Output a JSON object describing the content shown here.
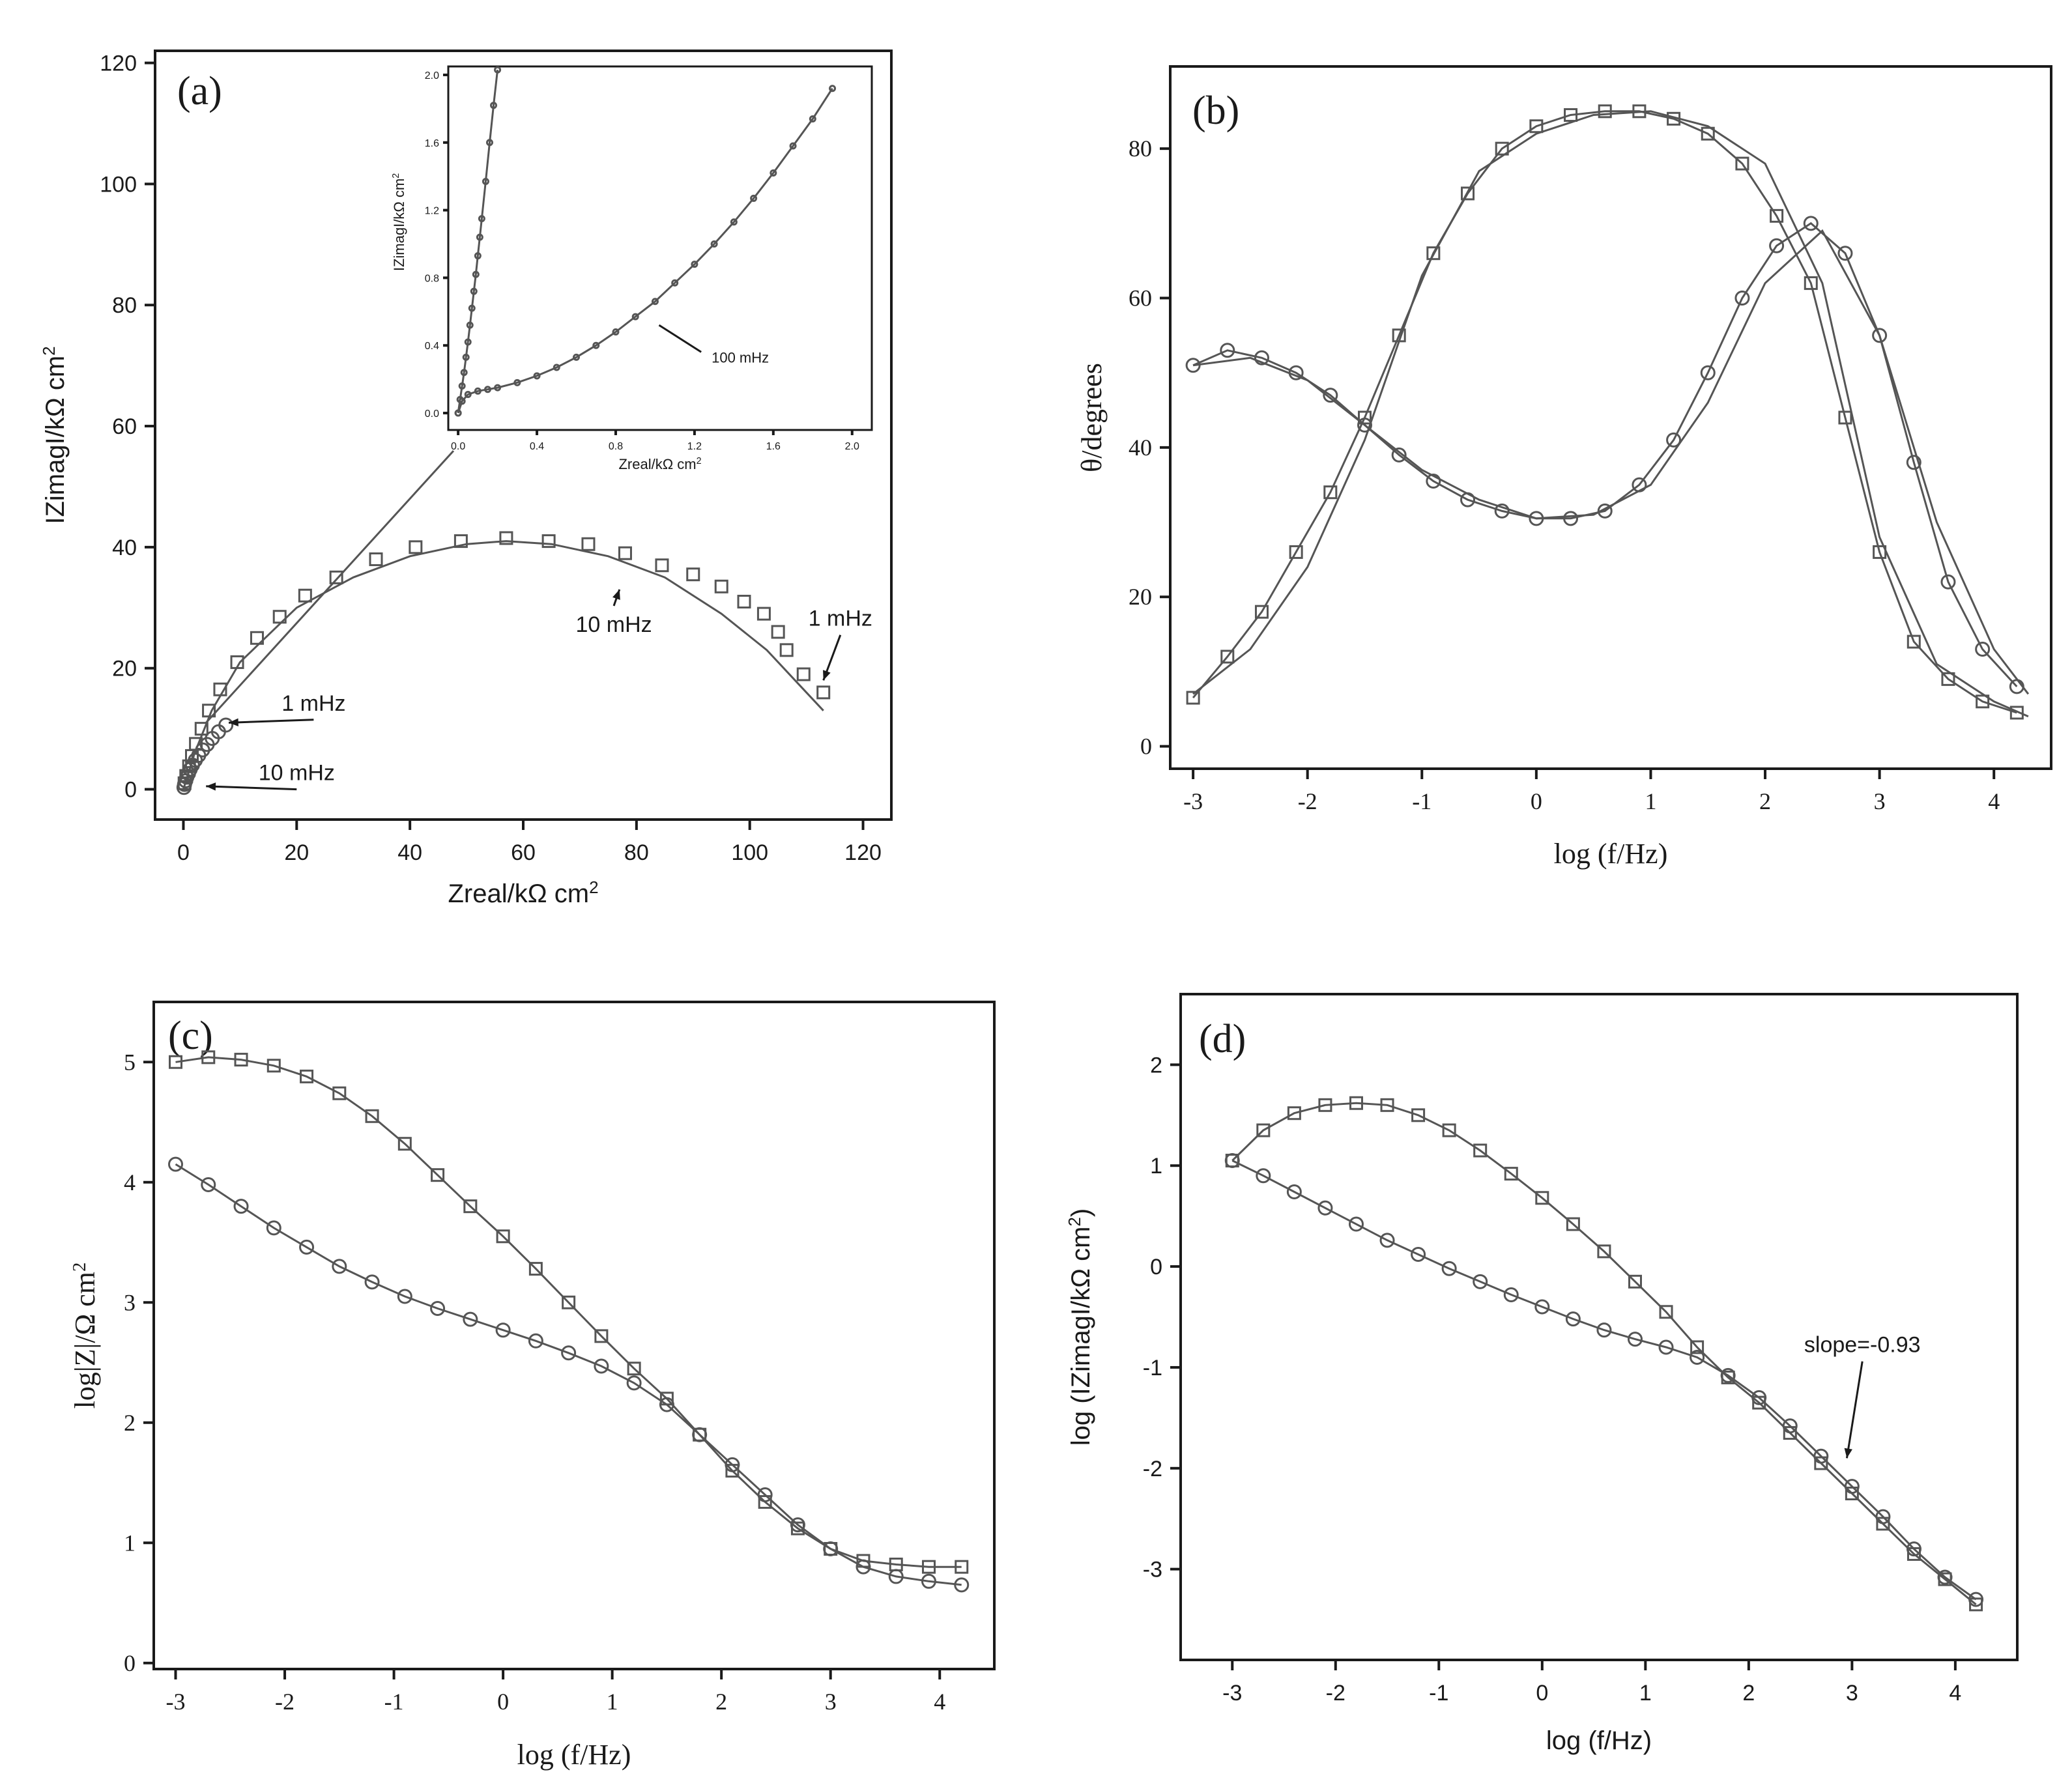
{
  "chart_data": [
    {
      "panel": "a",
      "type": "scatter",
      "panel_label": "(a)",
      "xlabel": "Zreal/kΩ cm",
      "xlabel_sup": "2",
      "ylabel": "IZimagI/kΩ cm",
      "ylabel_sup": "2",
      "xlim": [
        -5,
        125
      ],
      "ylim": [
        -5,
        122
      ],
      "xticks": [
        0,
        20,
        40,
        60,
        80,
        100,
        120
      ],
      "yticks": [
        0,
        20,
        40,
        60,
        80,
        100,
        120
      ],
      "series": [
        {
          "name": "squares",
          "marker": "square",
          "x": [
            0.2,
            0.5,
            1,
            1.5,
            2.2,
            3.2,
            4.5,
            6.5,
            9.5,
            13,
            17,
            21.5,
            27,
            34,
            41,
            49,
            57,
            64.5,
            71.5,
            78,
            84.5,
            90,
            95,
            99,
            102.5,
            105,
            106.5,
            109.5,
            113
          ],
          "y": [
            1,
            2.2,
            3.8,
            5.5,
            7.5,
            10,
            13,
            16.5,
            21,
            25,
            28.5,
            32,
            35,
            38,
            40,
            41,
            41.5,
            41,
            40.5,
            39,
            37,
            35.5,
            33.5,
            31,
            29,
            26,
            23,
            19,
            16
          ]
        },
        {
          "name": "circles",
          "marker": "circle",
          "x": [
            0.1,
            0.2,
            0.4,
            0.6,
            0.9,
            1.2,
            1.6,
            2.1,
            2.7,
            3.4,
            4.2,
            5.1,
            6.2,
            7.5
          ],
          "y": [
            0.3,
            0.8,
            1.4,
            2,
            2.6,
            3.3,
            4,
            4.8,
            5.6,
            6.5,
            7.4,
            8.4,
            9.5,
            10.6
          ]
        },
        {
          "name": "fit",
          "marker": "line",
          "x": [
            0,
            2,
            5,
            10,
            20,
            30,
            40,
            50,
            57,
            65,
            75,
            85,
            95,
            103,
            108,
            113
          ],
          "y": [
            0,
            6,
            13,
            21,
            30,
            35,
            38.5,
            40.5,
            41,
            40.5,
            38.5,
            35,
            29,
            23,
            18,
            13
          ]
        }
      ],
      "annotations": [
        {
          "text": "1 mHz",
          "x": 23,
          "y": 13,
          "arrow_to": [
            8,
            11
          ]
        },
        {
          "text": "10 mHz",
          "x": 20,
          "y": 1.5,
          "arrow_to": [
            4,
            0.5
          ]
        },
        {
          "text": "10 mHz",
          "x": 76,
          "y": 26,
          "arrow_to": [
            77,
            33
          ]
        },
        {
          "text": "1 mHz",
          "x": 116,
          "y": 27,
          "arrow_to": [
            113,
            18
          ]
        }
      ],
      "inset": {
        "xlabel": "Zreal/kΩ cm",
        "xlabel_sup": "2",
        "ylabel": "IZimagI/kΩ cm",
        "ylabel_sup": "2",
        "xlim": [
          -0.05,
          2.1
        ],
        "ylim": [
          -0.1,
          2.05
        ],
        "xticks": [
          "0.0",
          "0.4",
          "0.8",
          "1.2",
          "1.6",
          "2.0"
        ],
        "yticks": [
          "0.0",
          "0.4",
          "0.8",
          "1.2",
          "1.6",
          "2.0"
        ],
        "steep_series": {
          "x": [
            0.0,
            0.01,
            0.02,
            0.03,
            0.04,
            0.05,
            0.06,
            0.07,
            0.08,
            0.09,
            0.1,
            0.11,
            0.12,
            0.14,
            0.16,
            0.18,
            0.2
          ],
          "y": [
            0.0,
            0.08,
            0.16,
            0.24,
            0.33,
            0.42,
            0.52,
            0.62,
            0.72,
            0.82,
            0.93,
            1.04,
            1.15,
            1.37,
            1.6,
            1.82,
            2.03
          ]
        },
        "shallow_series": {
          "x": [
            0.0,
            0.02,
            0.05,
            0.1,
            0.15,
            0.2,
            0.3,
            0.4,
            0.5,
            0.6,
            0.7,
            0.8,
            0.9,
            1.0,
            1.1,
            1.2,
            1.3,
            1.4,
            1.5,
            1.6,
            1.7,
            1.8,
            1.9
          ],
          "y": [
            0.0,
            0.07,
            0.11,
            0.13,
            0.14,
            0.15,
            0.18,
            0.22,
            0.27,
            0.33,
            0.4,
            0.48,
            0.57,
            0.66,
            0.77,
            0.88,
            1.0,
            1.13,
            1.27,
            1.42,
            1.58,
            1.74,
            1.92
          ]
        },
        "annotation": {
          "text": "100 mHz",
          "x": 1.3,
          "y": 0.33,
          "arrow_to": [
            1.02,
            0.52
          ]
        }
      }
    },
    {
      "panel": "b",
      "type": "scatter",
      "panel_label": "(b)",
      "xlabel": "log (f/Hz)",
      "ylabel": "θ/degrees",
      "xlim": [
        -3.2,
        4.5
      ],
      "ylim": [
        -3,
        91
      ],
      "xticks": [
        -3,
        -2,
        -1,
        0,
        1,
        2,
        3,
        4
      ],
      "yticks": [
        0,
        20,
        40,
        60,
        80
      ],
      "series": [
        {
          "name": "squares",
          "marker": "square",
          "x": [
            -3.0,
            -2.7,
            -2.4,
            -2.1,
            -1.8,
            -1.5,
            -1.2,
            -0.9,
            -0.6,
            -0.3,
            0.0,
            0.3,
            0.6,
            0.9,
            1.2,
            1.5,
            1.8,
            2.1,
            2.4,
            2.7,
            3.0,
            3.3,
            3.6,
            3.9,
            4.2
          ],
          "y": [
            6.5,
            12,
            18,
            26,
            34,
            44,
            55,
            66,
            74,
            80,
            83,
            84.5,
            85,
            85,
            84,
            82,
            78,
            71,
            62,
            44,
            26,
            14,
            9,
            6,
            4.5
          ]
        },
        {
          "name": "circles",
          "marker": "circle",
          "x": [
            -3.0,
            -2.7,
            -2.4,
            -2.1,
            -1.8,
            -1.5,
            -1.2,
            -0.9,
            -0.6,
            -0.3,
            0.0,
            0.3,
            0.6,
            0.9,
            1.2,
            1.5,
            1.8,
            2.1,
            2.4,
            2.7,
            3.0,
            3.3,
            3.6,
            3.9,
            4.2
          ],
          "y": [
            51,
            53,
            52,
            50,
            47,
            43,
            39,
            35.5,
            33,
            31.5,
            30.5,
            30.5,
            31.5,
            35,
            41,
            50,
            60,
            67,
            70,
            66,
            55,
            38,
            22,
            13,
            8
          ]
        },
        {
          "name": "fit_squares",
          "marker": "line",
          "x": [
            -3.0,
            -2.5,
            -2.0,
            -1.5,
            -1.0,
            -0.5,
            0.0,
            0.5,
            1.0,
            1.5,
            2.0,
            2.5,
            3.0,
            3.5,
            4.0,
            4.3
          ],
          "y": [
            7,
            13,
            24,
            41,
            63,
            77,
            82,
            84.5,
            85,
            83,
            78,
            62,
            28,
            11,
            6,
            4
          ]
        },
        {
          "name": "fit_circles",
          "marker": "line",
          "x": [
            -3.0,
            -2.5,
            -2.0,
            -1.5,
            -1.0,
            -0.5,
            0.0,
            0.5,
            1.0,
            1.5,
            2.0,
            2.5,
            3.0,
            3.5,
            4.0,
            4.3
          ],
          "y": [
            51,
            52,
            49,
            43,
            37,
            33,
            30.5,
            31,
            35,
            46,
            62,
            69,
            55,
            30,
            13,
            7
          ]
        }
      ]
    },
    {
      "panel": "c",
      "type": "scatter",
      "panel_label": "(c)",
      "xlabel": "log (f/Hz)",
      "ylabel": "log|Z|/Ω cm",
      "ylabel_sup": "2",
      "xlim": [
        -3.2,
        4.5
      ],
      "ylim": [
        -0.05,
        5.5
      ],
      "xticks": [
        -3,
        -2,
        -1,
        0,
        1,
        2,
        3,
        4
      ],
      "yticks": [
        0,
        1,
        2,
        3,
        4,
        5
      ],
      "series": [
        {
          "name": "squares",
          "marker": "square",
          "x": [
            -3.0,
            -2.7,
            -2.4,
            -2.1,
            -1.8,
            -1.5,
            -1.2,
            -0.9,
            -0.6,
            -0.3,
            0.0,
            0.3,
            0.6,
            0.9,
            1.2,
            1.5,
            1.8,
            2.1,
            2.4,
            2.7,
            3.0,
            3.3,
            3.6,
            3.9,
            4.2
          ],
          "y": [
            5.0,
            5.04,
            5.02,
            4.97,
            4.88,
            4.74,
            4.55,
            4.32,
            4.06,
            3.8,
            3.55,
            3.28,
            3.0,
            2.72,
            2.45,
            2.2,
            1.9,
            1.6,
            1.34,
            1.12,
            0.95,
            0.85,
            0.82,
            0.8,
            0.8
          ]
        },
        {
          "name": "circles",
          "marker": "circle",
          "x": [
            -3.0,
            -2.7,
            -2.4,
            -2.1,
            -1.8,
            -1.5,
            -1.2,
            -0.9,
            -0.6,
            -0.3,
            0.0,
            0.3,
            0.6,
            0.9,
            1.2,
            1.5,
            1.8,
            2.1,
            2.4,
            2.7,
            3.0,
            3.3,
            3.6,
            3.9,
            4.2
          ],
          "y": [
            4.15,
            3.98,
            3.8,
            3.62,
            3.46,
            3.3,
            3.17,
            3.05,
            2.95,
            2.86,
            2.77,
            2.68,
            2.58,
            2.47,
            2.33,
            2.15,
            1.9,
            1.65,
            1.4,
            1.15,
            0.95,
            0.8,
            0.72,
            0.68,
            0.65
          ]
        }
      ]
    },
    {
      "panel": "d",
      "type": "scatter",
      "panel_label": "(d)",
      "xlabel": "log (f/Hz)",
      "ylabel": "log (IZimagI/kΩ cm",
      "ylabel_sup": "2",
      "ylabel_close": ")",
      "xlim": [
        -3.5,
        4.6
      ],
      "ylim": [
        -3.9,
        2.7
      ],
      "xticks": [
        -3,
        -2,
        -1,
        0,
        1,
        2,
        3,
        4
      ],
      "yticks": [
        2,
        1,
        0,
        -1,
        -2,
        -3
      ],
      "series": [
        {
          "name": "squares",
          "marker": "square",
          "x": [
            -3.0,
            -2.7,
            -2.4,
            -2.1,
            -1.8,
            -1.5,
            -1.2,
            -0.9,
            -0.6,
            -0.3,
            0.0,
            0.3,
            0.6,
            0.9,
            1.2,
            1.5,
            1.8,
            2.1,
            2.4,
            2.7,
            3.0,
            3.3,
            3.6,
            3.9,
            4.2
          ],
          "y": [
            1.05,
            1.35,
            1.52,
            1.6,
            1.62,
            1.6,
            1.5,
            1.35,
            1.15,
            0.92,
            0.68,
            0.42,
            0.15,
            -0.15,
            -0.45,
            -0.8,
            -1.1,
            -1.35,
            -1.65,
            -1.95,
            -2.25,
            -2.55,
            -2.85,
            -3.1,
            -3.35
          ]
        },
        {
          "name": "circles",
          "marker": "circle",
          "x": [
            -3.0,
            -2.7,
            -2.4,
            -2.1,
            -1.8,
            -1.5,
            -1.2,
            -0.9,
            -0.6,
            -0.3,
            0.0,
            0.3,
            0.6,
            0.9,
            1.2,
            1.5,
            1.8,
            2.1,
            2.4,
            2.7,
            3.0,
            3.3,
            3.6,
            3.9,
            4.2
          ],
          "y": [
            1.05,
            0.9,
            0.74,
            0.58,
            0.42,
            0.26,
            0.12,
            -0.02,
            -0.15,
            -0.28,
            -0.4,
            -0.52,
            -0.63,
            -0.72,
            -0.8,
            -0.9,
            -1.08,
            -1.3,
            -1.58,
            -1.88,
            -2.18,
            -2.48,
            -2.8,
            -3.08,
            -3.3
          ]
        }
      ],
      "annotations": [
        {
          "text": "slope=-0.93",
          "x": 3.1,
          "y": -0.85,
          "arrow_to": [
            2.95,
            -1.9
          ]
        }
      ]
    }
  ]
}
